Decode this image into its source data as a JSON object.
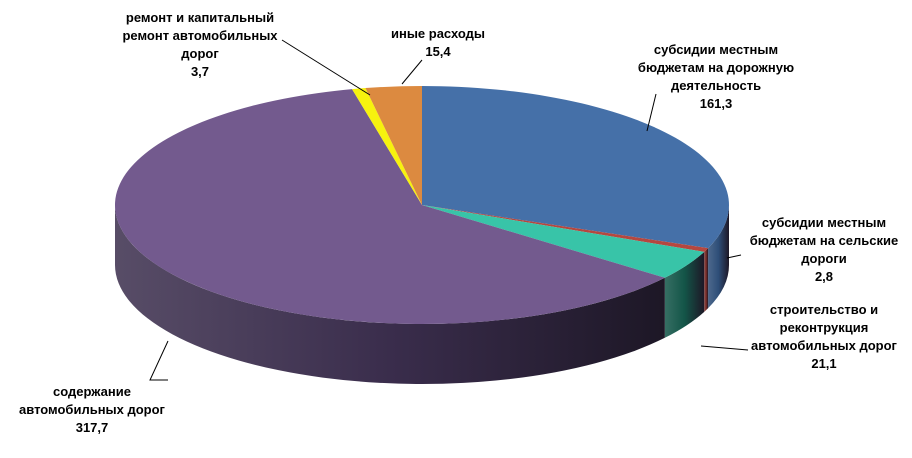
{
  "chart_data": {
    "type": "pie",
    "style": "3d",
    "slices": [
      {
        "label_lines": [
          "субсидии местным",
          "бюджетам на дорожную",
          "деятельность"
        ],
        "value_text": "161,3",
        "value": 161.3,
        "color": "#4570A8",
        "side_color": "#2E4E78"
      },
      {
        "label_lines": [
          "субсидии местным",
          "бюджетам на сельские",
          "дороги"
        ],
        "value_text": "2,8",
        "value": 2.8,
        "color": "#B5473F",
        "side_color": "#7A2C27"
      },
      {
        "label_lines": [
          "строительство и",
          "реконтрукция",
          "автомобильных дорог"
        ],
        "value_text": "21,1",
        "value": 21.1,
        "color": "#38C4A8",
        "side_color": "#135548"
      },
      {
        "label_lines": [
          "содержание",
          "автомобильных дорог"
        ],
        "value_text": "317,7",
        "value": 317.7,
        "color": "#735A8E",
        "side_color": "#3A2D4C"
      },
      {
        "label_lines": [
          "ремонт и капитальный",
          "ремонт автомобильных",
          "дорог"
        ],
        "value_text": "3,7",
        "value": 3.7,
        "color": "#F7F20E",
        "side_color": "#9A960A"
      },
      {
        "label_lines": [
          "иные расходы"
        ],
        "value_text": "15,4",
        "value": 15.4,
        "color": "#DC8A40",
        "side_color": "#8E5522"
      }
    ]
  }
}
